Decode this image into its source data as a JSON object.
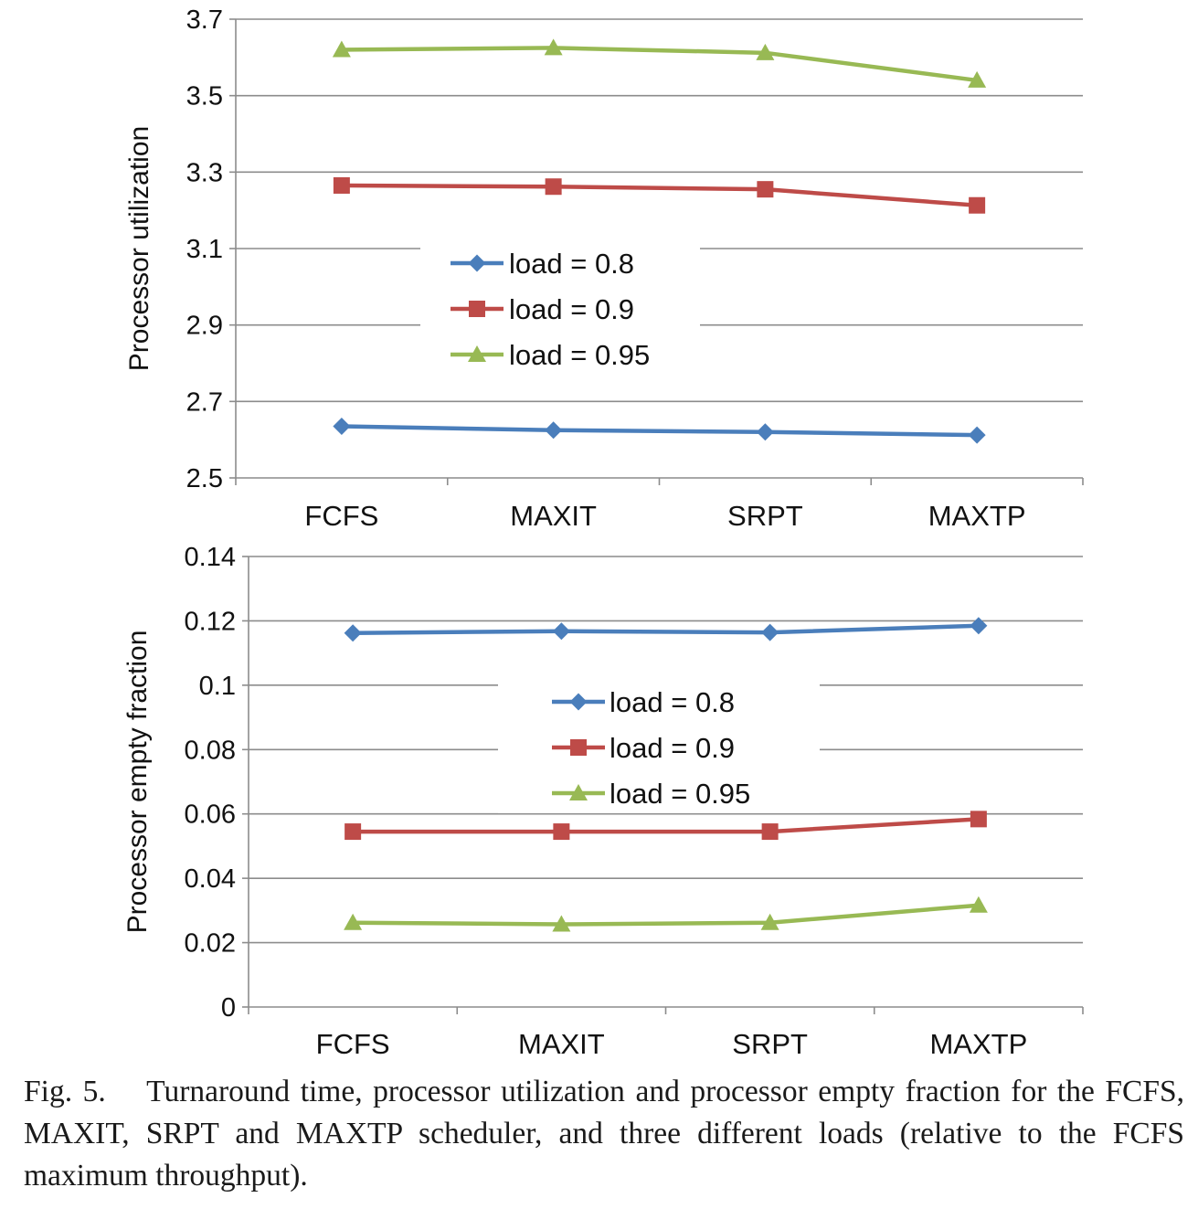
{
  "chart_data": [
    {
      "type": "line",
      "title": "",
      "xlabel": "",
      "ylabel": "Processor utilization",
      "categories": [
        "FCFS",
        "MAXIT",
        "SRPT",
        "MAXTP"
      ],
      "ylim": [
        2.5,
        3.7
      ],
      "yticks": [
        "2.5",
        "2.7",
        "2.9",
        "3.1",
        "3.3",
        "3.5",
        "3.7"
      ],
      "grid": true,
      "legend_position": "center",
      "series": [
        {
          "name": "load = 0.8",
          "values": [
            2.635,
            2.625,
            2.62,
            2.612
          ],
          "color": "#4a7ebb",
          "marker": "diamond"
        },
        {
          "name": "load = 0.9",
          "values": [
            3.265,
            3.262,
            3.255,
            3.213
          ],
          "color": "#be4b48",
          "marker": "square"
        },
        {
          "name": "load = 0.95",
          "values": [
            3.62,
            3.625,
            3.612,
            3.54
          ],
          "color": "#98b954",
          "marker": "triangle"
        }
      ]
    },
    {
      "type": "line",
      "title": "",
      "xlabel": "",
      "ylabel": "Processor empty fraction",
      "categories": [
        "FCFS",
        "MAXIT",
        "SRPT",
        "MAXTP"
      ],
      "ylim": [
        0,
        0.14
      ],
      "yticks": [
        "0",
        "0.02",
        "0.04",
        "0.06",
        "0.08",
        "0.1",
        "0.12",
        "0.14"
      ],
      "grid": true,
      "legend_position": "center",
      "series": [
        {
          "name": "load = 0.8",
          "values": [
            0.1162,
            0.1168,
            0.1164,
            0.1185
          ],
          "color": "#4a7ebb",
          "marker": "diamond"
        },
        {
          "name": "load = 0.9",
          "values": [
            0.0545,
            0.0545,
            0.0545,
            0.0584
          ],
          "color": "#be4b48",
          "marker": "square"
        },
        {
          "name": "load = 0.95",
          "values": [
            0.0262,
            0.0257,
            0.0262,
            0.0316
          ],
          "color": "#98b954",
          "marker": "triangle"
        }
      ]
    }
  ],
  "caption": "Fig. 5.  Turnaround time, processor utilization and processor empty fraction for the FCFS, MAXIT, SRPT and MAXTP scheduler, and three different loads (relative to the FCFS maximum throughput)."
}
